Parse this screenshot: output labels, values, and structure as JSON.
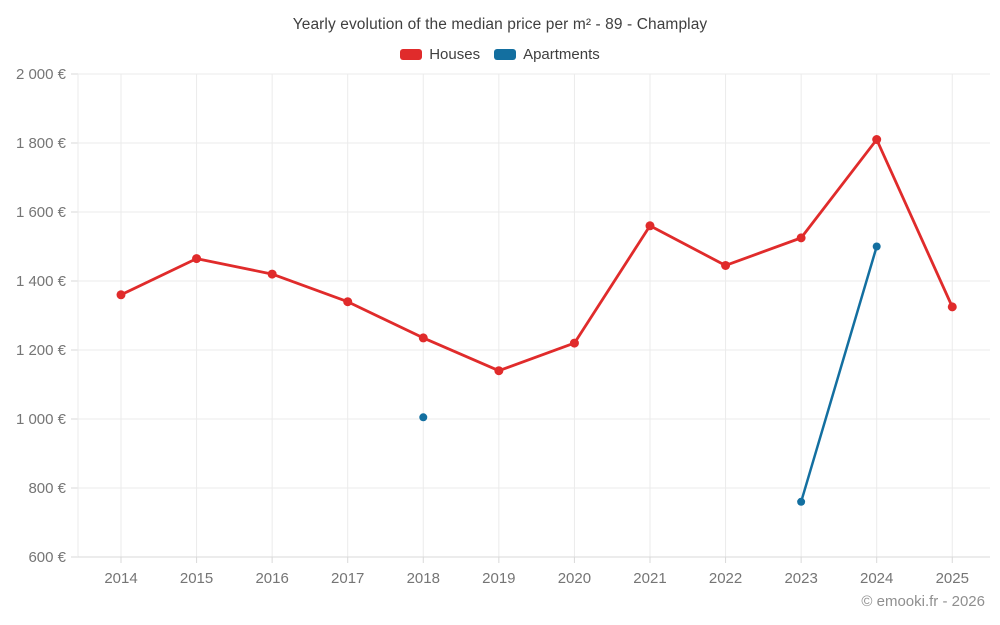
{
  "chart_data": {
    "type": "line",
    "title": "Yearly evolution of the median price per m² - 89 - Champlay",
    "x": [
      2014,
      2015,
      2016,
      2017,
      2018,
      2019,
      2020,
      2021,
      2022,
      2023,
      2024,
      2025
    ],
    "series": [
      {
        "name": "Houses",
        "color": "#e02b2b",
        "marker_radius": 4.5,
        "line_width": 2.8,
        "values": [
          1360,
          1465,
          1420,
          1340,
          1235,
          1140,
          1220,
          1560,
          1445,
          1525,
          1810,
          1325
        ]
      },
      {
        "name": "Apartments",
        "color": "#136fa0",
        "marker_radius": 4,
        "line_width": 2.5,
        "values": [
          null,
          null,
          null,
          null,
          1005,
          null,
          null,
          null,
          null,
          760,
          1500,
          null
        ]
      }
    ],
    "ylim": [
      600,
      2000
    ],
    "ytick_step": 200,
    "ytick_labels": [
      "2 000 €",
      "1 800 €",
      "1 600 €",
      "1 400 €",
      "1 200 €",
      "1 000 €",
      "800 €",
      "600 €"
    ],
    "grid": true,
    "legend_position": "top",
    "grid_color": "#ebebeb",
    "axis_color": "#d9d9d9"
  },
  "footer": {
    "credit": "© emooki.fr - 2026"
  }
}
